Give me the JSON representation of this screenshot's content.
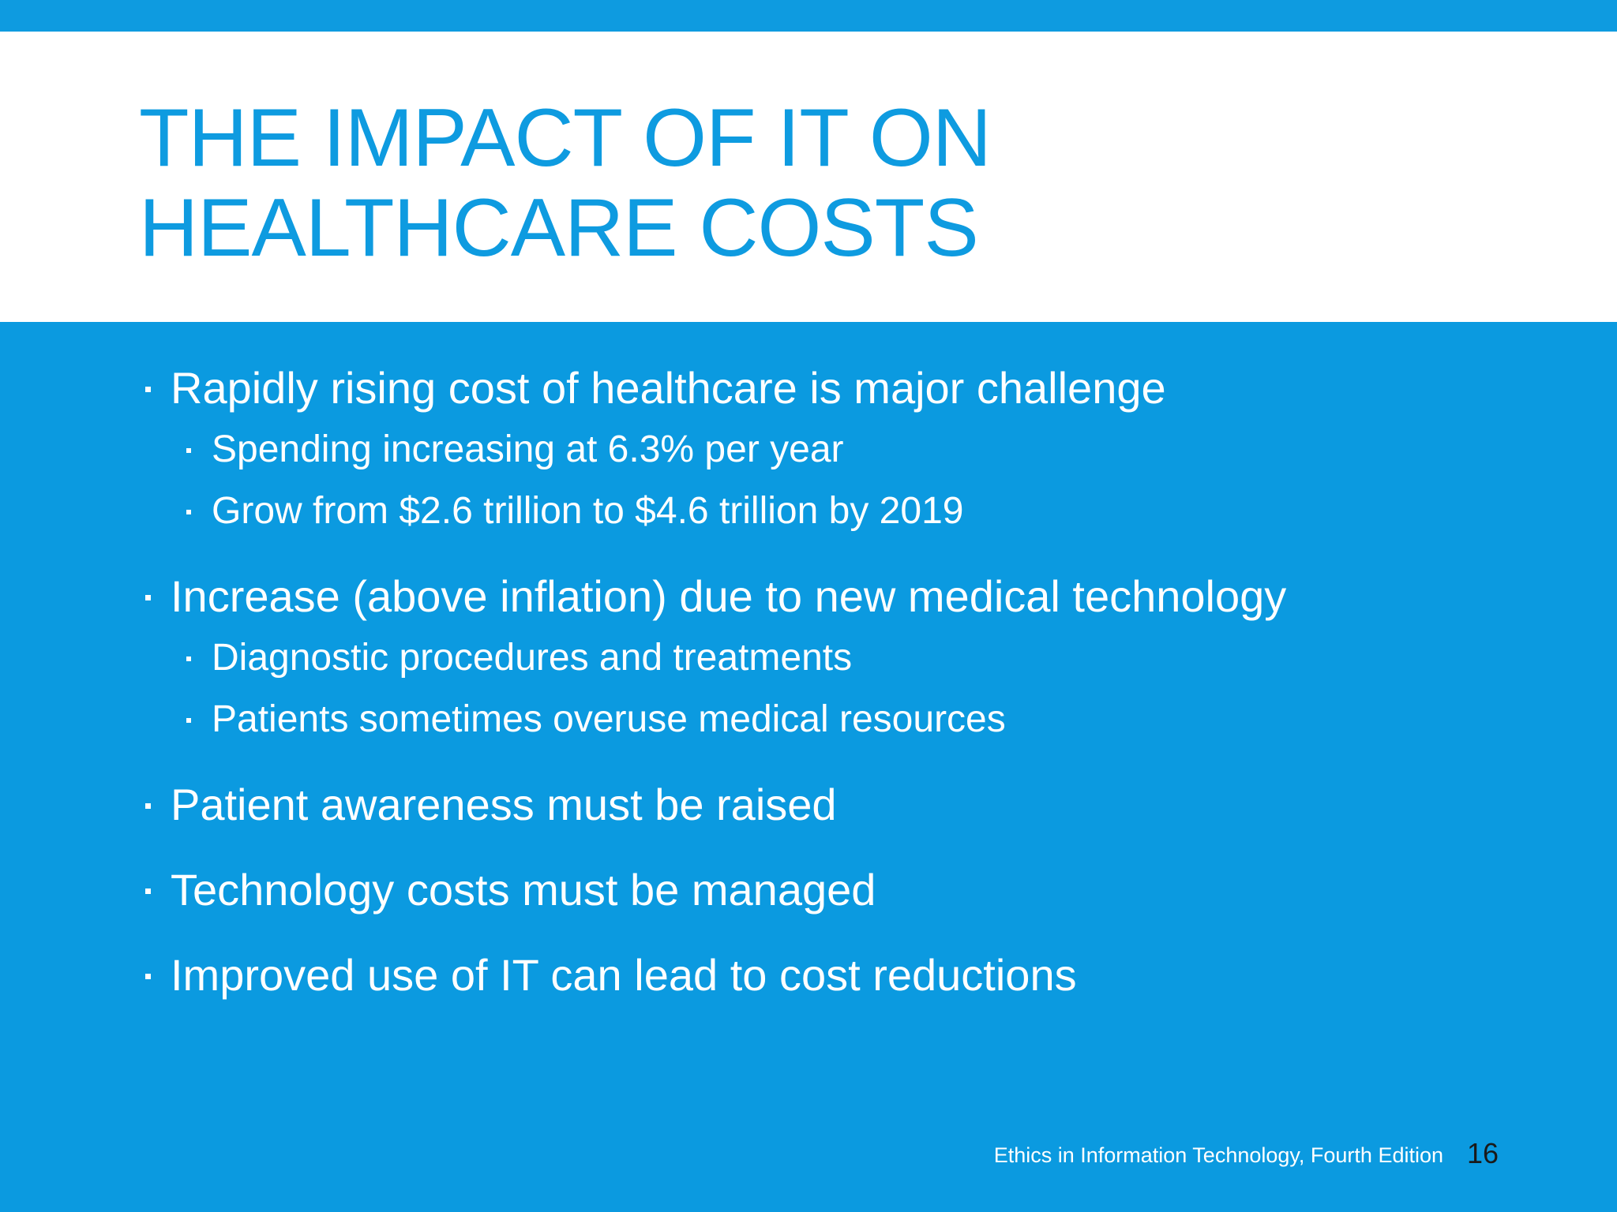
{
  "slide": {
    "title_lines": [
      "THE IMPACT OF IT ON",
      "HEALTHCARE COSTS"
    ],
    "bullets": [
      {
        "text": "Rapidly rising cost of healthcare is major challenge",
        "sub": [
          "Spending increasing at 6.3% per year",
          "Grow from $2.6 trillion to $4.6 trillion by 2019"
        ]
      },
      {
        "text": "Increase (above inflation) due to new medical technology",
        "sub": [
          "Diagnostic procedures and treatments",
          "Patients sometimes overuse medical resources"
        ]
      },
      {
        "text": "Patient awareness must be raised",
        "sub": []
      },
      {
        "text": "Technology costs must be managed",
        "sub": []
      },
      {
        "text": "Improved use of IT can lead to cost reductions",
        "sub": []
      }
    ],
    "footer": "Ethics in Information Technology, Fourth Edition",
    "page_number": "16"
  },
  "colors": {
    "accent_blue": "#0e9be0",
    "content_background": "#0b9ae0",
    "text_white": "#ffffff",
    "page_number_text": "#1a1a1a"
  }
}
